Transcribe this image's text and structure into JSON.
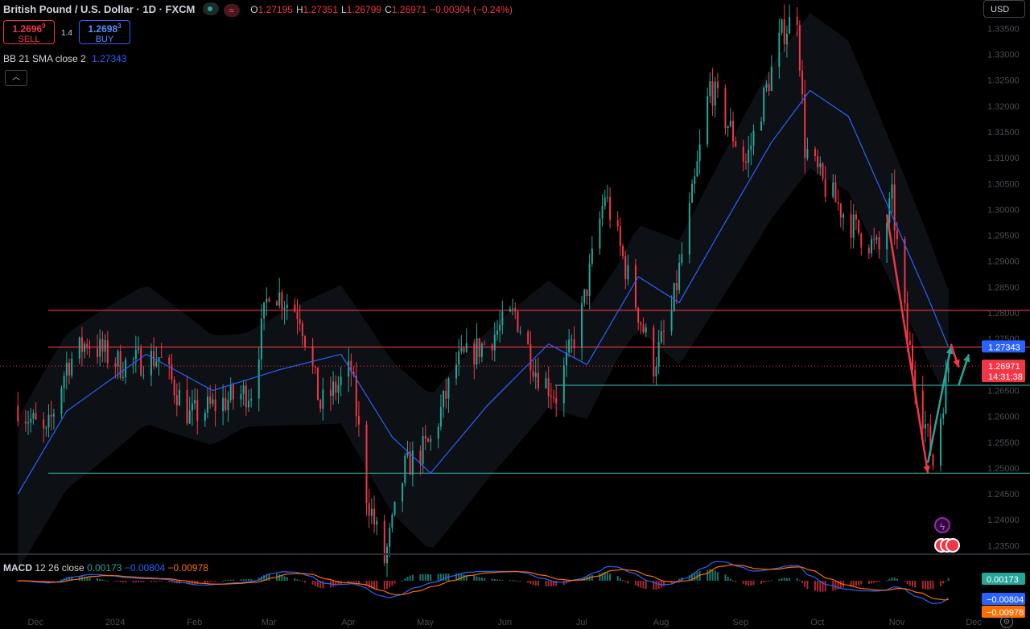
{
  "header": {
    "title": "British Pound / U.S. Dollar · 1D · FXCM",
    "ohlc": [
      {
        "k": "O",
        "v": "1.27195"
      },
      {
        "k": "H",
        "v": "1.27351"
      },
      {
        "k": "L",
        "v": "1.26799"
      },
      {
        "k": "C",
        "v": "1.26971"
      },
      {
        "k": "",
        "v": "−0.00304 (−0.24%)"
      }
    ]
  },
  "trade": {
    "sell_price": "1.2696",
    "sell_pip": "9",
    "sell_label": "SELL",
    "spread": "1.4",
    "buy_price": "1.2698",
    "buy_pip": "3",
    "buy_label": "BUY"
  },
  "indicators": {
    "bb_label": "BB 21 SMA close 2",
    "bb_value": "1.27343",
    "macd_label": "MACD",
    "macd_params": "12 26 close",
    "macd_hist": "0.00173",
    "macd_line": "−0.00804",
    "macd_signal": "−0.00978",
    "collapse_icon": "chevron-up-icon"
  },
  "currency": "USD",
  "colors": {
    "up": "#26a69a",
    "down": "#f23645",
    "bb_mid": "#2962ff",
    "macd_line": "#2962ff",
    "macd_signal": "#ff6d00",
    "bg": "#000000",
    "band_fill": "#0d1014"
  },
  "chart_data": {
    "type": "candlestick",
    "title": "British Pound / U.S. Dollar",
    "x_tick_labels": [
      "Dec",
      "2024",
      "Feb",
      "Mar",
      "Apr",
      "May",
      "Jun",
      "Jul",
      "Aug",
      "Sep",
      "Oct",
      "Nov",
      "Dec"
    ],
    "y_tick_labels": [
      "1.33500",
      "1.33000",
      "1.32500",
      "1.32000",
      "1.31500",
      "1.31000",
      "1.30500",
      "1.30000",
      "1.29500",
      "1.29000",
      "1.28500",
      "1.28000",
      "1.27500",
      "1.27000",
      "1.26500",
      "1.26000",
      "1.25500",
      "1.25000",
      "1.24500",
      "1.24000",
      "1.23500"
    ],
    "ylim": [
      1.2335,
      1.3405
    ],
    "close_path": [
      {
        "date": "2023-12-01",
        "close": 1.262
      },
      {
        "date": "2023-12-12",
        "close": 1.256
      },
      {
        "date": "2023-12-20",
        "close": 1.27
      },
      {
        "date": "2023-12-28",
        "close": 1.2745
      },
      {
        "date": "2024-01-10",
        "close": 1.27
      },
      {
        "date": "2024-01-25",
        "close": 1.2715
      },
      {
        "date": "2024-02-06",
        "close": 1.26
      },
      {
        "date": "2024-02-20",
        "close": 1.263
      },
      {
        "date": "2024-03-01",
        "close": 1.265
      },
      {
        "date": "2024-03-08",
        "close": 1.285
      },
      {
        "date": "2024-03-20",
        "close": 1.28
      },
      {
        "date": "2024-03-28",
        "close": 1.262
      },
      {
        "date": "2024-04-09",
        "close": 1.269
      },
      {
        "date": "2024-04-15",
        "close": 1.245
      },
      {
        "date": "2024-04-22",
        "close": 1.232
      },
      {
        "date": "2024-04-30",
        "close": 1.25
      },
      {
        "date": "2024-05-10",
        "close": 1.255
      },
      {
        "date": "2024-05-20",
        "close": 1.27
      },
      {
        "date": "2024-05-31",
        "close": 1.274
      },
      {
        "date": "2024-06-12",
        "close": 1.28
      },
      {
        "date": "2024-06-20",
        "close": 1.269
      },
      {
        "date": "2024-06-28",
        "close": 1.264
      },
      {
        "date": "2024-07-08",
        "close": 1.28
      },
      {
        "date": "2024-07-17",
        "close": 1.303
      },
      {
        "date": "2024-07-26",
        "close": 1.287
      },
      {
        "date": "2024-08-05",
        "close": 1.27
      },
      {
        "date": "2024-08-12",
        "close": 1.28
      },
      {
        "date": "2024-08-21",
        "close": 1.305
      },
      {
        "date": "2024-08-27",
        "close": 1.324
      },
      {
        "date": "2024-09-10",
        "close": 1.309
      },
      {
        "date": "2024-09-24",
        "close": 1.334
      },
      {
        "date": "2024-09-30",
        "close": 1.338
      },
      {
        "date": "2024-10-03",
        "close": 1.312
      },
      {
        "date": "2024-10-10",
        "close": 1.305
      },
      {
        "date": "2024-10-23",
        "close": 1.296
      },
      {
        "date": "2024-11-01",
        "close": 1.292
      },
      {
        "date": "2024-11-06",
        "close": 1.302
      },
      {
        "date": "2024-11-12",
        "close": 1.275
      },
      {
        "date": "2024-11-22",
        "close": 1.251
      },
      {
        "date": "2024-11-28",
        "close": 1.2697
      }
    ],
    "bb_mid_path": [
      {
        "date": "2023-12-01",
        "value": 1.245
      },
      {
        "date": "2023-12-20",
        "value": 1.261
      },
      {
        "date": "2024-01-20",
        "value": 1.272
      },
      {
        "date": "2024-02-15",
        "value": 1.265
      },
      {
        "date": "2024-03-12",
        "value": 1.269
      },
      {
        "date": "2024-04-05",
        "value": 1.272
      },
      {
        "date": "2024-04-25",
        "value": 1.256
      },
      {
        "date": "2024-05-10",
        "value": 1.249
      },
      {
        "date": "2024-06-01",
        "value": 1.262
      },
      {
        "date": "2024-06-25",
        "value": 1.274
      },
      {
        "date": "2024-07-10",
        "value": 1.27
      },
      {
        "date": "2024-07-30",
        "value": 1.287
      },
      {
        "date": "2024-08-15",
        "value": 1.282
      },
      {
        "date": "2024-08-30",
        "value": 1.295
      },
      {
        "date": "2024-09-20",
        "value": 1.313
      },
      {
        "date": "2024-10-05",
        "value": 1.323
      },
      {
        "date": "2024-10-20",
        "value": 1.318
      },
      {
        "date": "2024-11-05",
        "value": 1.3
      },
      {
        "date": "2024-11-20",
        "value": 1.283
      },
      {
        "date": "2024-11-28",
        "value": 1.2734
      }
    ],
    "band_halfwidth": 0.012,
    "horizontal_levels": [
      {
        "price": 1.2805,
        "color": "#f23645"
      },
      {
        "price": 1.2734,
        "color": "#f23645"
      },
      {
        "price": 1.266,
        "color": "#26a69a"
      },
      {
        "price": 1.249,
        "color": "#26a69a"
      }
    ],
    "price_labels": [
      {
        "text": "1.27343",
        "price": 1.27343,
        "bg": "#2962ff"
      },
      {
        "text": "1.26971",
        "sub": "14:31:38",
        "price": 1.26971,
        "bg": "#f23645"
      }
    ],
    "annotations_arrows": [
      {
        "from": {
          "date": "2024-11-04",
          "price": 1.299
        },
        "to": {
          "date": "2024-11-20",
          "price": 1.249
        },
        "color": "#f23645"
      },
      {
        "from": {
          "date": "2024-11-20",
          "price": 1.251
        },
        "to": {
          "date": "2024-11-29",
          "price": 1.2735
        },
        "color": "#26a69a"
      },
      {
        "from": {
          "date": "2024-11-29",
          "price": 1.274
        },
        "to": {
          "date": "2024-12-02",
          "price": 1.2695
        },
        "color": "#f23645"
      },
      {
        "from": {
          "date": "2024-12-02",
          "price": 1.266
        },
        "to": {
          "date": "2024-12-06",
          "price": 1.272
        },
        "color": "#26a69a"
      }
    ],
    "macd": {
      "hist_latest": 0.00173,
      "macd_latest": -0.00804,
      "signal_latest": -0.00978,
      "labels": [
        {
          "text": "0.00173",
          "bg": "#26a69a"
        },
        {
          "text": "−0.00804",
          "bg": "#2962ff"
        },
        {
          "text": "−0.00978",
          "bg": "#ff6d00"
        }
      ]
    }
  }
}
